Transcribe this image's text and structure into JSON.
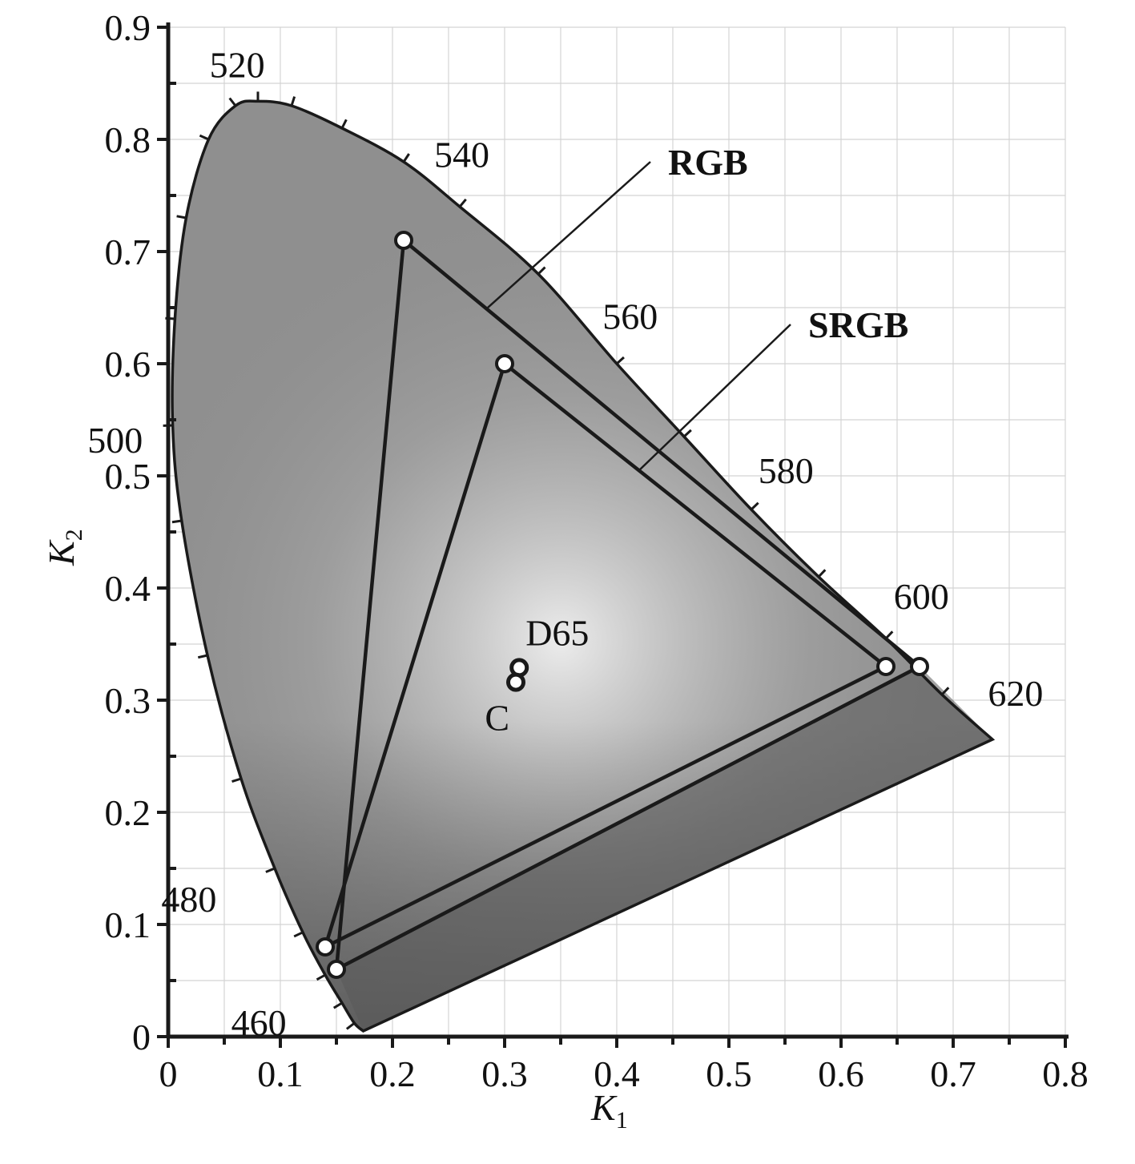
{
  "chart_data": {
    "type": "scatter",
    "title": "",
    "xlabel": "K",
    "xlabel_sub": "1",
    "ylabel": "K",
    "ylabel_sub": "2",
    "xlim": [
      0,
      0.8
    ],
    "ylim": [
      0,
      0.9
    ],
    "grid": true,
    "x_ticks": [
      0,
      0.1,
      0.2,
      0.3,
      0.4,
      0.5,
      0.6,
      0.7,
      0.8
    ],
    "x_tick_labels": [
      "0",
      "0.1",
      "0.2",
      "0.3",
      "0.4",
      "0.5",
      "0.6",
      "0.7",
      "0.8"
    ],
    "y_ticks": [
      0,
      0.1,
      0.2,
      0.3,
      0.4,
      0.5,
      0.6,
      0.7,
      0.8,
      0.9
    ],
    "y_tick_labels": [
      "0",
      "0.1",
      "0.2",
      "0.3",
      "0.4",
      "0.5",
      "0.6",
      "0.7",
      "0.8",
      "0.9"
    ],
    "spectral_locus": {
      "points": [
        [
          0.174,
          0.005
        ],
        [
          0.166,
          0.012
        ],
        [
          0.155,
          0.03
        ],
        [
          0.14,
          0.055
        ],
        [
          0.12,
          0.093
        ],
        [
          0.095,
          0.15
        ],
        [
          0.065,
          0.23
        ],
        [
          0.035,
          0.34
        ],
        [
          0.012,
          0.46
        ],
        [
          0.004,
          0.545
        ],
        [
          0.006,
          0.64
        ],
        [
          0.016,
          0.73
        ],
        [
          0.036,
          0.8
        ],
        [
          0.06,
          0.83
        ],
        [
          0.08,
          0.834
        ],
        [
          0.11,
          0.83
        ],
        [
          0.155,
          0.81
        ],
        [
          0.21,
          0.78
        ],
        [
          0.26,
          0.74
        ],
        [
          0.33,
          0.68
        ],
        [
          0.4,
          0.6
        ],
        [
          0.46,
          0.535
        ],
        [
          0.52,
          0.47
        ],
        [
          0.58,
          0.41
        ],
        [
          0.64,
          0.355
        ],
        [
          0.69,
          0.305
        ],
        [
          0.735,
          0.265
        ]
      ],
      "wavelength_labels": [
        {
          "label": "520",
          "x": 0.074,
          "y": 0.834
        },
        {
          "label": "540",
          "x": 0.23,
          "y": 0.754
        },
        {
          "label": "560",
          "x": 0.373,
          "y": 0.624
        },
        {
          "label": "580",
          "x": 0.512,
          "y": 0.488
        },
        {
          "label": "600",
          "x": 0.627,
          "y": 0.37
        },
        {
          "label": "620",
          "x": 0.691,
          "y": 0.308
        },
        {
          "label": "500",
          "x": 0.008,
          "y": 0.538
        },
        {
          "label": "480",
          "x": 0.091,
          "y": 0.133
        },
        {
          "label": "460",
          "x": 0.144,
          "y": 0.03
        }
      ]
    },
    "series": [
      {
        "name": "RGB",
        "points": [
          [
            0.21,
            0.71
          ],
          [
            0.67,
            0.33
          ],
          [
            0.15,
            0.06
          ]
        ]
      },
      {
        "name": "SRGB",
        "points": [
          [
            0.3,
            0.6
          ],
          [
            0.64,
            0.33
          ],
          [
            0.14,
            0.08
          ]
        ]
      }
    ],
    "gamut_callouts": [
      {
        "series": "RGB",
        "from": [
          0.285,
          0.65
        ],
        "to": [
          0.43,
          0.78
        ]
      },
      {
        "series": "SRGB",
        "from": [
          0.42,
          0.505
        ],
        "to": [
          0.555,
          0.635
        ]
      }
    ],
    "white_points": [
      {
        "name": "D65",
        "x": 0.313,
        "y": 0.329
      },
      {
        "name": "C",
        "x": 0.31,
        "y": 0.316
      }
    ],
    "colors": {
      "locus_fill": "#8f8f8f",
      "center_highlight": "#ececec",
      "edge_shade": "#5a5a5a",
      "line": "#1a1a1a",
      "grid": "#d4d4d4",
      "marker_fill": "#ffffff"
    }
  }
}
